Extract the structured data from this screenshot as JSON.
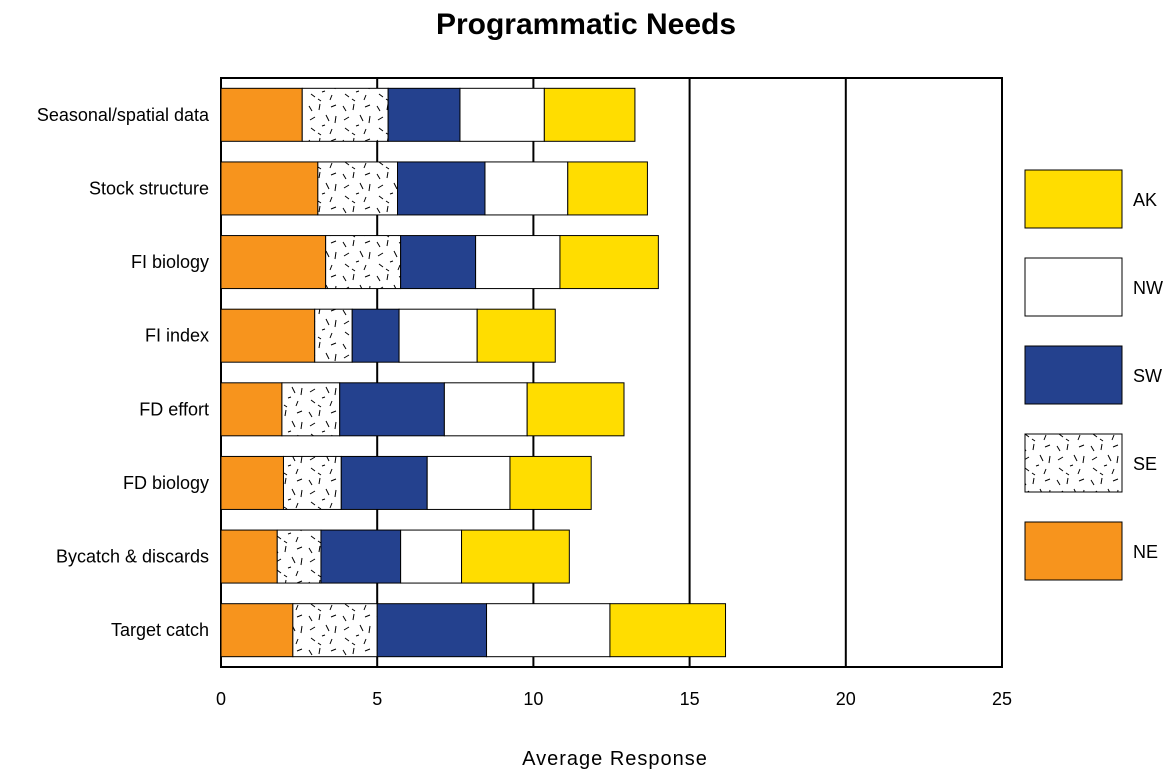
{
  "chart_data": {
    "type": "bar",
    "orientation": "horizontal",
    "stacked": true,
    "title": "Programmatic Needs",
    "xlabel": "Average Response",
    "ylabel": "",
    "xlim": [
      0,
      25
    ],
    "xticks": [
      0,
      5,
      10,
      15,
      20,
      25
    ],
    "grid": "vertical lines at 5, 15, 20",
    "legend_position": "right",
    "categories": [
      "Seasonal/spatial data",
      "Stock structure",
      "FI biology",
      "FI index",
      "FD effort",
      "FD biology",
      "Bycatch & discards",
      "Target catch"
    ],
    "series": [
      {
        "name": "NE",
        "color": "#F7941D",
        "pattern": "solid",
        "values": [
          2.6,
          3.1,
          3.35,
          3.0,
          1.95,
          2.0,
          1.8,
          2.3
        ]
      },
      {
        "name": "SE",
        "color": "#FFFFFF",
        "pattern": "dashes",
        "values": [
          2.75,
          2.55,
          2.4,
          1.2,
          1.85,
          1.85,
          1.4,
          2.7
        ]
      },
      {
        "name": "SW",
        "color": "#24418E",
        "pattern": "solid",
        "values": [
          2.3,
          2.8,
          2.4,
          1.5,
          3.35,
          2.75,
          2.55,
          3.5
        ]
      },
      {
        "name": "NW",
        "color": "#FFFFFF",
        "pattern": "solid",
        "values": [
          2.7,
          2.65,
          2.7,
          2.5,
          2.65,
          2.65,
          1.95,
          3.95
        ]
      },
      {
        "name": "AK",
        "color": "#FFDD00",
        "pattern": "solid",
        "values": [
          2.9,
          2.55,
          3.15,
          2.5,
          3.1,
          2.6,
          3.45,
          3.7
        ]
      }
    ],
    "legend_order": [
      "AK",
      "NW",
      "SW",
      "SE",
      "NE"
    ]
  }
}
